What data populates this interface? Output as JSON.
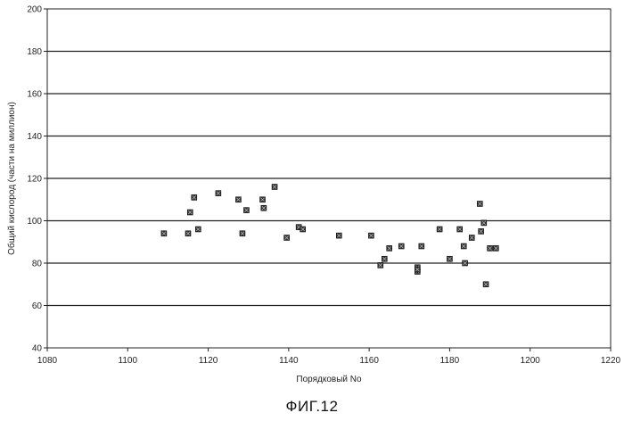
{
  "chart_data": {
    "type": "scatter",
    "title": "",
    "xlabel": "Порядковый No",
    "ylabel": "Общий кислород (части на миллион)",
    "xlim": [
      1080,
      1220
    ],
    "ylim": [
      40,
      200
    ],
    "xticks": [
      1080,
      1100,
      1120,
      1140,
      1160,
      1180,
      1200,
      1220
    ],
    "yticks": [
      40,
      60,
      80,
      100,
      120,
      140,
      160,
      180,
      200
    ],
    "grid": "horizontal",
    "legend": "none",
    "marker_color": "#333333",
    "series": [
      {
        "x": [
          1109,
          1115,
          1115.5,
          1116.5,
          1117.5,
          1122.5,
          1127.5,
          1128.5,
          1129.5,
          1133.5,
          1133.8,
          1136.5,
          1139.5,
          1142.5,
          1143.5,
          1152.5,
          1160.5,
          1162.8,
          1163.8,
          1165,
          1168,
          1172,
          1172,
          1172,
          1173,
          1177.5,
          1180,
          1182.5,
          1183.5,
          1183.8,
          1185.5,
          1187.5,
          1187.8,
          1188.5,
          1189,
          1190,
          1191.5
        ],
        "y": [
          94,
          94,
          104,
          111,
          96,
          113,
          110,
          94,
          105,
          110,
          106,
          116,
          92,
          97,
          96,
          93,
          93,
          79,
          82,
          87,
          88,
          78,
          76,
          77,
          88,
          96,
          82,
          96,
          88,
          80,
          92,
          108,
          95,
          99,
          70,
          87,
          87
        ]
      }
    ]
  },
  "caption": "ФИГ.12"
}
